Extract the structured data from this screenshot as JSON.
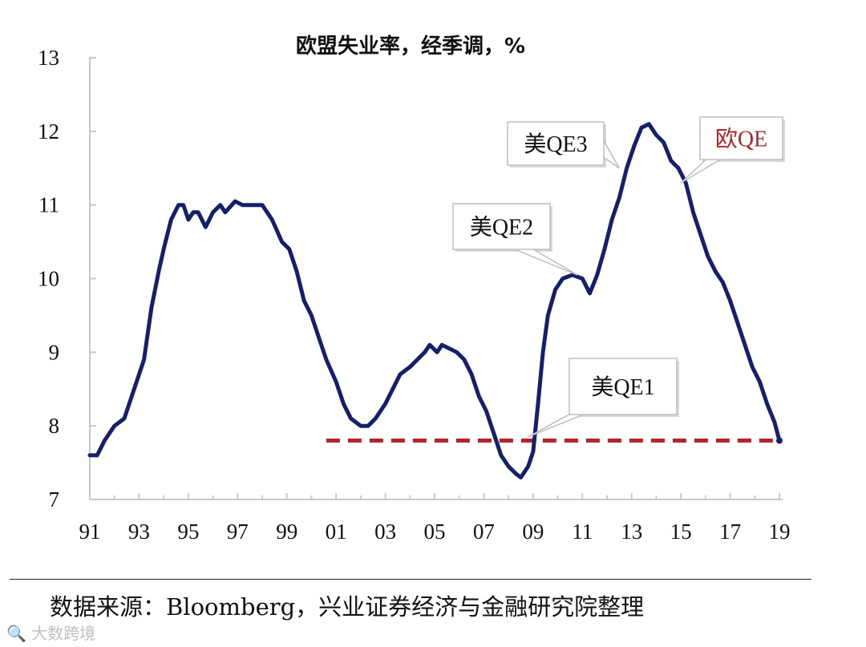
{
  "chart_data": {
    "type": "line",
    "title": "欧盟失业率，经季调，%",
    "xlabel": "",
    "ylabel": "",
    "ylim": [
      7,
      13
    ],
    "xlim": [
      1991,
      2019
    ],
    "yticks": [
      "7",
      "8",
      "9",
      "10",
      "11",
      "12",
      "13"
    ],
    "xticks": [
      "91",
      "93",
      "95",
      "97",
      "99",
      "01",
      "03",
      "05",
      "07",
      "09",
      "11",
      "13",
      "15",
      "17",
      "19"
    ],
    "series": [
      {
        "color": "#14206b",
        "points": [
          [
            1991.0,
            7.6
          ],
          [
            1991.3,
            7.6
          ],
          [
            1991.6,
            7.8
          ],
          [
            1992.0,
            8.0
          ],
          [
            1992.4,
            8.1
          ],
          [
            1992.8,
            8.5
          ],
          [
            1993.2,
            8.9
          ],
          [
            1993.5,
            9.6
          ],
          [
            1993.8,
            10.1
          ],
          [
            1994.0,
            10.4
          ],
          [
            1994.3,
            10.8
          ],
          [
            1994.6,
            11.0
          ],
          [
            1994.8,
            11.0
          ],
          [
            1995.0,
            10.8
          ],
          [
            1995.2,
            10.9
          ],
          [
            1995.4,
            10.9
          ],
          [
            1995.7,
            10.7
          ],
          [
            1996.0,
            10.9
          ],
          [
            1996.3,
            11.0
          ],
          [
            1996.5,
            10.9
          ],
          [
            1996.9,
            11.05
          ],
          [
            1997.2,
            11.0
          ],
          [
            1997.5,
            11.0
          ],
          [
            1998.0,
            11.0
          ],
          [
            1998.4,
            10.8
          ],
          [
            1998.8,
            10.5
          ],
          [
            1999.1,
            10.4
          ],
          [
            1999.4,
            10.1
          ],
          [
            1999.7,
            9.7
          ],
          [
            2000.0,
            9.5
          ],
          [
            2000.3,
            9.2
          ],
          [
            2000.6,
            8.9
          ],
          [
            2001.0,
            8.6
          ],
          [
            2001.3,
            8.3
          ],
          [
            2001.6,
            8.1
          ],
          [
            2002.0,
            8.0
          ],
          [
            2002.3,
            8.0
          ],
          [
            2002.6,
            8.1
          ],
          [
            2003.0,
            8.3
          ],
          [
            2003.3,
            8.5
          ],
          [
            2003.6,
            8.7
          ],
          [
            2004.0,
            8.8
          ],
          [
            2004.3,
            8.9
          ],
          [
            2004.6,
            9.0
          ],
          [
            2004.8,
            9.1
          ],
          [
            2005.1,
            9.0
          ],
          [
            2005.3,
            9.1
          ],
          [
            2005.6,
            9.05
          ],
          [
            2005.9,
            9.0
          ],
          [
            2006.2,
            8.9
          ],
          [
            2006.5,
            8.7
          ],
          [
            2006.8,
            8.4
          ],
          [
            2007.1,
            8.2
          ],
          [
            2007.4,
            7.9
          ],
          [
            2007.7,
            7.6
          ],
          [
            2008.0,
            7.45
          ],
          [
            2008.3,
            7.35
          ],
          [
            2008.5,
            7.3
          ],
          [
            2008.8,
            7.45
          ],
          [
            2009.0,
            7.65
          ],
          [
            2009.2,
            8.3
          ],
          [
            2009.4,
            9.0
          ],
          [
            2009.6,
            9.5
          ],
          [
            2009.9,
            9.85
          ],
          [
            2010.2,
            10.0
          ],
          [
            2010.6,
            10.05
          ],
          [
            2011.0,
            10.0
          ],
          [
            2011.3,
            9.8
          ],
          [
            2011.6,
            10.05
          ],
          [
            2011.9,
            10.4
          ],
          [
            2012.2,
            10.8
          ],
          [
            2012.5,
            11.1
          ],
          [
            2012.8,
            11.5
          ],
          [
            2013.1,
            11.8
          ],
          [
            2013.4,
            12.05
          ],
          [
            2013.7,
            12.1
          ],
          [
            2014.0,
            11.95
          ],
          [
            2014.3,
            11.85
          ],
          [
            2014.6,
            11.6
          ],
          [
            2014.9,
            11.5
          ],
          [
            2015.2,
            11.3
          ],
          [
            2015.5,
            10.9
          ],
          [
            2015.8,
            10.6
          ],
          [
            2016.1,
            10.3
          ],
          [
            2016.4,
            10.1
          ],
          [
            2016.7,
            9.95
          ],
          [
            2017.0,
            9.7
          ],
          [
            2017.3,
            9.4
          ],
          [
            2017.6,
            9.1
          ],
          [
            2017.9,
            8.8
          ],
          [
            2018.2,
            8.6
          ],
          [
            2018.5,
            8.3
          ],
          [
            2018.8,
            8.05
          ],
          [
            2019.0,
            7.8
          ]
        ]
      }
    ],
    "reference_line": {
      "y": 7.8,
      "x_from": 2000.6,
      "x_to": 2019.0,
      "style": "dashed",
      "color": "#b0252a"
    },
    "annotations": [
      {
        "text": "美QE1",
        "color": "#111111",
        "x": 2008.8,
        "y": 7.85
      },
      {
        "text": "美QE2",
        "color": "#111111",
        "x": 2010.8,
        "y": 10.05
      },
      {
        "text": "美QE3",
        "color": "#111111",
        "x": 2012.5,
        "y": 11.5
      },
      {
        "text": "欧QE",
        "color": "#b0252a",
        "x": 2015.0,
        "y": 11.3
      }
    ]
  },
  "footer": {
    "source": "数据来源：Bloomberg，兴业证券经济与金融研究院整理",
    "watermark": "大数跨境"
  }
}
